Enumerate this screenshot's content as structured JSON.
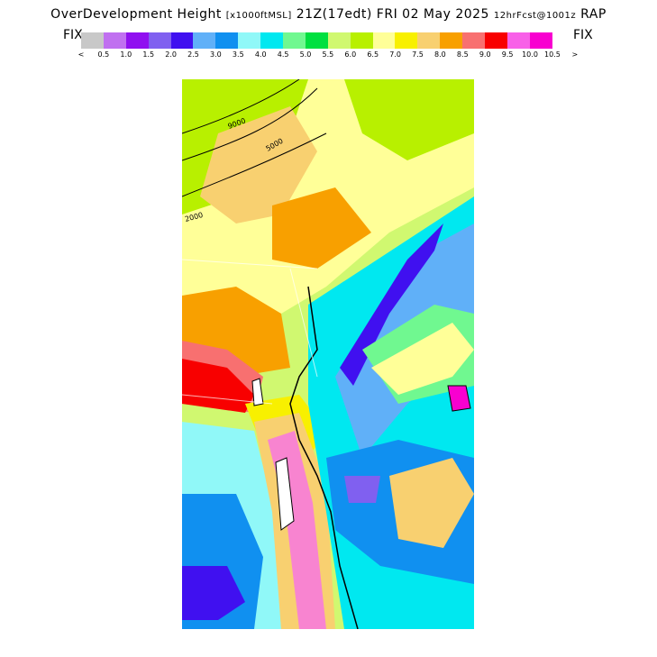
{
  "title": {
    "main": "OverDevelopment Height",
    "units": "[x1000ftMSL]",
    "time": "21Z(17edt) FRI 02 May 2025",
    "forecast": "12hrFcst@1001z",
    "model": "RAP"
  },
  "fix_left": "FIX",
  "fix_right": "FIX",
  "legend": {
    "colors": [
      "#c8c8c8",
      "#c070f0",
      "#9010f0",
      "#8060f0",
      "#4010f0",
      "#60b0f8",
      "#1090f0",
      "#90f8f8",
      "#00e8f0",
      "#70f890",
      "#00e040",
      "#d0f870",
      "#b8f000",
      "#ffff98",
      "#f8f000",
      "#f8d070",
      "#f8a000",
      "#f87070",
      "#f80000",
      "#f860e8",
      "#f800d0"
    ],
    "tick_labels": [
      "<",
      "0.5",
      "1.0",
      "1.5",
      "2.0",
      "2.5",
      "3.0",
      "3.5",
      "4.0",
      "4.5",
      "5.0",
      "5.5",
      "6.0",
      "6.5",
      "7.0",
      "7.5",
      "8.0",
      "8.5",
      "9.0",
      "9.5",
      "10.0",
      "10.5",
      ">"
    ]
  },
  "contour_labels": [
    "9000",
    "5000",
    "2000"
  ]
}
